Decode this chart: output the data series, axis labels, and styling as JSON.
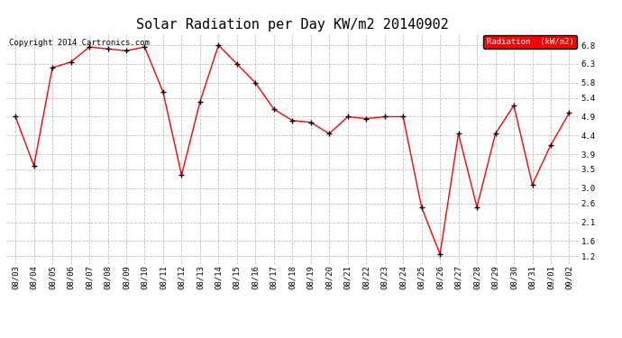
{
  "title": "Solar Radiation per Day KW/m2 20140902",
  "copyright_text": "Copyright 2014 Cartronics.com",
  "dates": [
    "08/03",
    "08/04",
    "08/05",
    "08/06",
    "08/07",
    "08/08",
    "08/09",
    "08/10",
    "08/11",
    "08/12",
    "08/13",
    "08/14",
    "08/15",
    "08/16",
    "08/17",
    "08/18",
    "08/19",
    "08/20",
    "08/21",
    "08/22",
    "08/23",
    "08/24",
    "08/25",
    "08/26",
    "08/27",
    "08/28",
    "08/29",
    "08/30",
    "08/31",
    "09/01",
    "09/02"
  ],
  "values": [
    4.9,
    3.6,
    6.2,
    6.35,
    6.75,
    6.7,
    6.65,
    6.75,
    5.55,
    3.35,
    5.3,
    6.8,
    6.3,
    5.8,
    5.1,
    4.8,
    4.75,
    4.45,
    4.9,
    4.85,
    4.9,
    4.9,
    2.5,
    1.25,
    4.45,
    2.5,
    4.45,
    5.2,
    3.1,
    4.15,
    5.0
  ],
  "line_color": "#ff0000",
  "marker_color": "#000000",
  "background_color": "#ffffff",
  "grid_color": "#c0c0c0",
  "ylim": [
    1.0,
    7.1
  ],
  "yticks": [
    1.2,
    1.6,
    2.1,
    2.6,
    3.0,
    3.5,
    3.9,
    4.4,
    4.9,
    5.4,
    5.8,
    6.3,
    6.8
  ],
  "legend_label": "Radiation  (kW/m2)",
  "legend_bg": "#ff0000",
  "legend_text_color": "#ffffff",
  "title_fontsize": 11,
  "tick_fontsize": 6.5,
  "copyright_fontsize": 6.5,
  "fig_width": 6.9,
  "fig_height": 3.75,
  "dpi": 100
}
